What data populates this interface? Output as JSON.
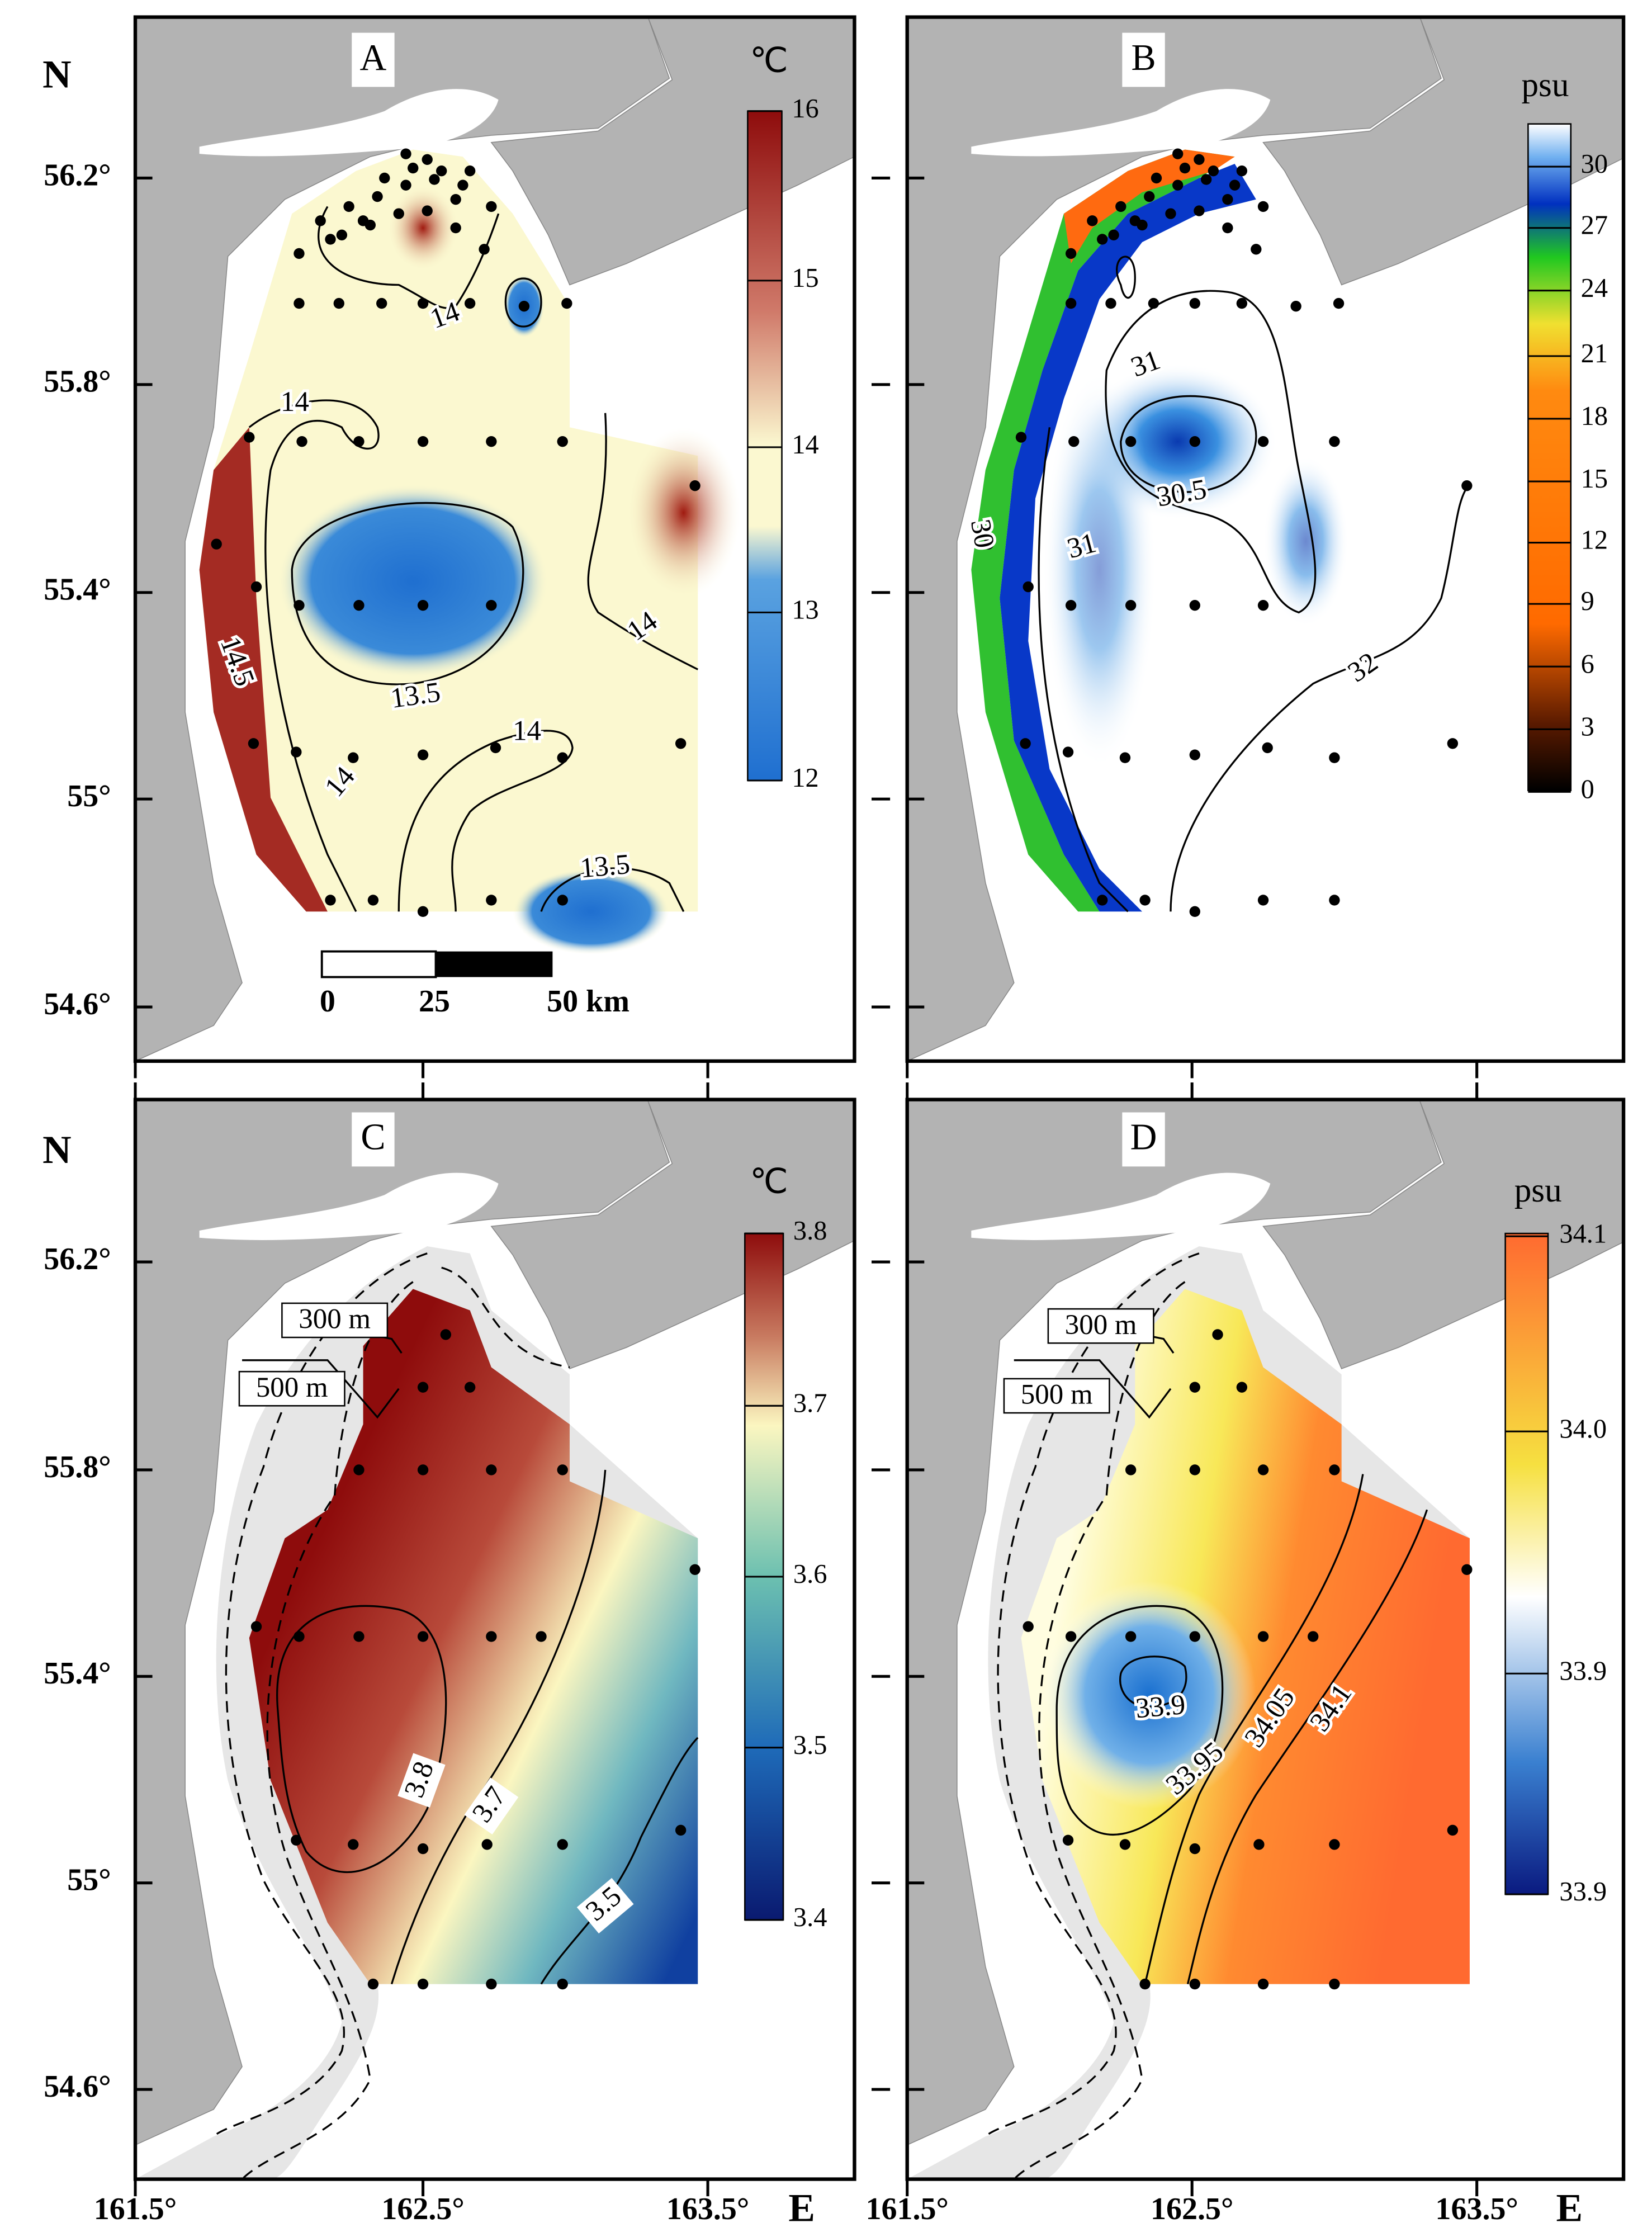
{
  "north": "N",
  "east": "E",
  "lat_labels": [
    "56.2°",
    "55.8°",
    "55.4°",
    "55°",
    "54.6°"
  ],
  "lon_labels": [
    "161.5°",
    "162.5°",
    "163.5°"
  ],
  "scale_bar": [
    "0",
    "25",
    "50 km"
  ],
  "panels": [
    {
      "label": "A",
      "unit": "℃",
      "colorbar_ticks": [
        "16",
        "15",
        "14",
        "13",
        "12"
      ],
      "contour_labels": [
        "14",
        "14",
        "13.5",
        "14",
        "14.5",
        "14",
        "14",
        "13.5"
      ]
    },
    {
      "label": "B",
      "unit": "psu",
      "colorbar_ticks": [
        "30",
        "27",
        "24",
        "21",
        "18",
        "15",
        "12",
        "9",
        "6",
        "3",
        "0"
      ],
      "contour_labels": [
        "31",
        "30.5",
        "31",
        "30",
        "32"
      ]
    },
    {
      "label": "C",
      "unit": "℃",
      "colorbar_ticks": [
        "3.8",
        "3.7",
        "3.6",
        "3.5",
        "3.4"
      ],
      "depth_labels": [
        "300 m",
        "500 m"
      ],
      "contour_labels": [
        "3.8",
        "3.7",
        "3.5"
      ]
    },
    {
      "label": "D",
      "unit": "psu",
      "colorbar_ticks": [
        "34.1",
        "34.0",
        "33.9",
        "33.9"
      ],
      "depth_labels": [
        "300 m",
        "500 m"
      ],
      "contour_labels": [
        "33.9",
        "33.95",
        "34.05",
        "34.1"
      ]
    }
  ]
}
